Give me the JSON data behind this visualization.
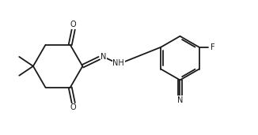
{
  "background_color": "#ffffff",
  "line_color": "#1a1a1a",
  "label_color": "#1a1a1a",
  "figsize": [
    3.26,
    1.71
  ],
  "dpi": 100,
  "bond_width": 1.3,
  "font_size": 7.0,
  "xlim": [
    0,
    9.5
  ],
  "ylim": [
    0,
    5.0
  ]
}
